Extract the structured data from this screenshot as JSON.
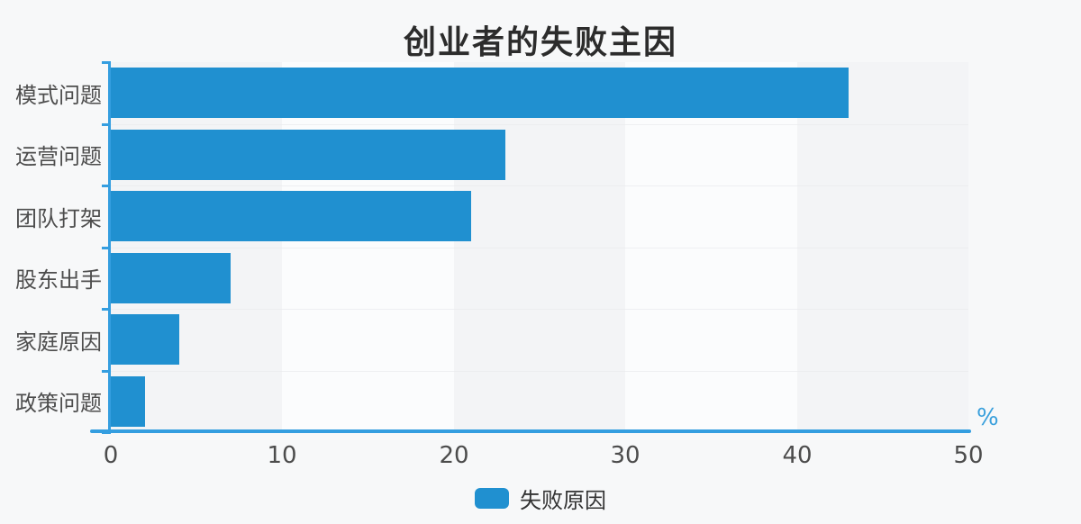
{
  "title": "创业者的失败主因",
  "x_axis": {
    "unit_label": "%"
  },
  "colors": {
    "bar": "#2090d0",
    "axis": "#349ee0",
    "unit_text": "#3aa0dc",
    "band_dark": "#f3f4f6",
    "band_light": "#fbfcfd",
    "page_bg": "#f7f8f9",
    "title_text": "#2c2c2c",
    "tick_text": "#4c4c4c",
    "category_text": "#4d4d4d",
    "legend_text": "#333333"
  },
  "chart_data": {
    "type": "bar",
    "orientation": "horizontal",
    "title": "创业者的失败主因",
    "categories": [
      "模式问题",
      "运营问题",
      "团队打架",
      "股东出手",
      "家庭原因",
      "政策问题"
    ],
    "series": [
      {
        "name": "失败原因",
        "values": [
          43,
          23,
          21,
          7,
          4,
          2
        ]
      }
    ],
    "value_unit": "%",
    "xlim": [
      0,
      50
    ],
    "x_ticks": [
      0,
      10,
      20,
      30,
      40,
      50
    ],
    "grid": "alternating-vertical-split-bands",
    "legend_position": "bottom-center",
    "bar_color": "#2090d0"
  }
}
